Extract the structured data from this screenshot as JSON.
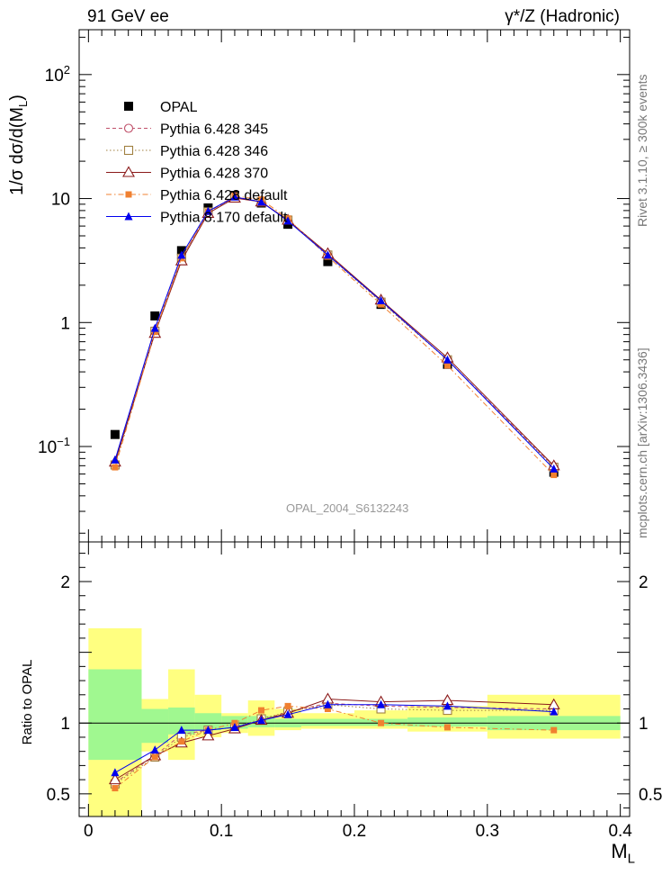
{
  "header": {
    "left": "91 GeV ee",
    "right": "γ*/Z (Hadronic)"
  },
  "side_labels": {
    "rivet": "Rivet 3.1.10, ≥ 300k events",
    "mcplots": "mcplots.cern.ch [arXiv:1306.3436]"
  },
  "watermark": "OPAL_2004_S6132243",
  "chart_data": [
    {
      "type": "line",
      "panel": "main",
      "ylabel": "1/σ dσ/d(M_L)",
      "xlabel": "M_L",
      "yscale": "log",
      "xlim": [
        -0.007,
        0.407
      ],
      "ylim": [
        0.017,
        230
      ],
      "y_ticks": [
        "10^-1",
        "1",
        "10",
        "10^2"
      ],
      "legend_position": "top-left",
      "x": [
        0.02,
        0.05,
        0.07,
        0.09,
        0.11,
        0.13,
        0.15,
        0.18,
        0.22,
        0.27,
        0.35
      ],
      "series": [
        {
          "name": "OPAL",
          "marker": "square-filled",
          "color": "#000000",
          "values": [
            0.125,
            1.13,
            3.8,
            8.4,
            10.6,
            9.2,
            6.2,
            3.1,
            1.4,
            0.46,
            0.062
          ]
        },
        {
          "name": "Pythia 6.428 345",
          "marker": "circle-open",
          "color": "#c0506a",
          "dash": "4,3",
          "values": [
            0.072,
            0.86,
            3.3,
            7.8,
            10.3,
            9.4,
            6.7,
            3.55,
            1.48,
            0.5,
            0.069
          ]
        },
        {
          "name": "Pythia 6.428 346",
          "marker": "square-open",
          "color": "#a08040",
          "dash": "1.5,2.5",
          "values": [
            0.071,
            0.85,
            3.3,
            7.8,
            10.3,
            9.4,
            6.7,
            3.5,
            1.46,
            0.5,
            0.068
          ]
        },
        {
          "name": "Pythia 6.428 370",
          "marker": "triangle-open",
          "color": "#8b1a1a",
          "dash": "",
          "values": [
            0.075,
            0.82,
            3.15,
            7.6,
            10.1,
            9.4,
            6.7,
            3.6,
            1.52,
            0.52,
            0.07
          ]
        },
        {
          "name": "Pythia 6.428 default",
          "marker": "square-filled-small",
          "color": "#f08030",
          "dash": "6,3,1.5,3",
          "values": [
            0.068,
            0.84,
            3.3,
            7.8,
            10.5,
            9.8,
            6.9,
            3.4,
            1.4,
            0.45,
            0.059
          ]
        },
        {
          "name": "Pythia 8.170 default",
          "marker": "triangle-filled",
          "color": "#0000ee",
          "dash": "",
          "values": [
            0.078,
            0.9,
            3.5,
            7.9,
            10.3,
            9.4,
            6.6,
            3.5,
            1.5,
            0.5,
            0.066
          ]
        }
      ]
    },
    {
      "type": "line",
      "panel": "ratio",
      "ylabel": "Ratio to OPAL",
      "xlabel": "M_L",
      "xlim": [
        -0.007,
        0.407
      ],
      "ylim": [
        0.34,
        2.28
      ],
      "x_ticks": [
        "0",
        "0.1",
        "0.2",
        "0.3",
        "0.4"
      ],
      "y_ticks": [
        "0.5",
        "1",
        "2"
      ],
      "reference_line": 1,
      "bands": {
        "edges": [
          0.0,
          0.04,
          0.06,
          0.08,
          0.1,
          0.12,
          0.14,
          0.16,
          0.2,
          0.24,
          0.3,
          0.4
        ],
        "stat_lo": [
          0.74,
          0.86,
          0.92,
          0.95,
          0.96,
          0.97,
          0.97,
          0.98,
          0.98,
          0.975,
          0.95
        ],
        "stat_hi": [
          1.38,
          1.1,
          1.11,
          1.07,
          1.05,
          1.05,
          1.03,
          1.03,
          1.03,
          1.04,
          1.05
        ],
        "tot_lo": [
          0.34,
          0.8,
          0.74,
          0.9,
          0.93,
          0.91,
          0.95,
          0.96,
          0.96,
          0.94,
          0.89
        ],
        "tot_hi": [
          1.67,
          1.17,
          1.38,
          1.2,
          1.07,
          1.16,
          1.1,
          1.07,
          1.09,
          1.12,
          1.2
        ],
        "stat_color": "#a0f890",
        "total_color": "#ffff80"
      },
      "series": [
        {
          "name": "Pythia 6.428 345",
          "values": [
            0.58,
            0.77,
            0.92,
            0.95,
            0.97,
            1.02,
            1.08,
            1.14,
            1.12,
            1.11,
            1.1
          ]
        },
        {
          "name": "Pythia 6.428 346",
          "values": [
            0.57,
            0.76,
            0.9,
            0.95,
            0.97,
            1.03,
            1.08,
            1.13,
            1.1,
            1.09,
            1.09
          ]
        },
        {
          "name": "Pythia 6.428 370",
          "values": [
            0.6,
            0.77,
            0.86,
            0.91,
            0.96,
            1.02,
            1.07,
            1.17,
            1.15,
            1.16,
            1.13
          ]
        },
        {
          "name": "Pythia 6.428 default",
          "values": [
            0.54,
            0.76,
            0.87,
            0.95,
            1.0,
            1.09,
            1.12,
            1.1,
            1.0,
            0.97,
            0.95
          ]
        },
        {
          "name": "Pythia 8.170 default",
          "values": [
            0.65,
            0.81,
            0.95,
            0.95,
            0.97,
            1.02,
            1.06,
            1.13,
            1.13,
            1.12,
            1.08
          ]
        }
      ]
    }
  ]
}
